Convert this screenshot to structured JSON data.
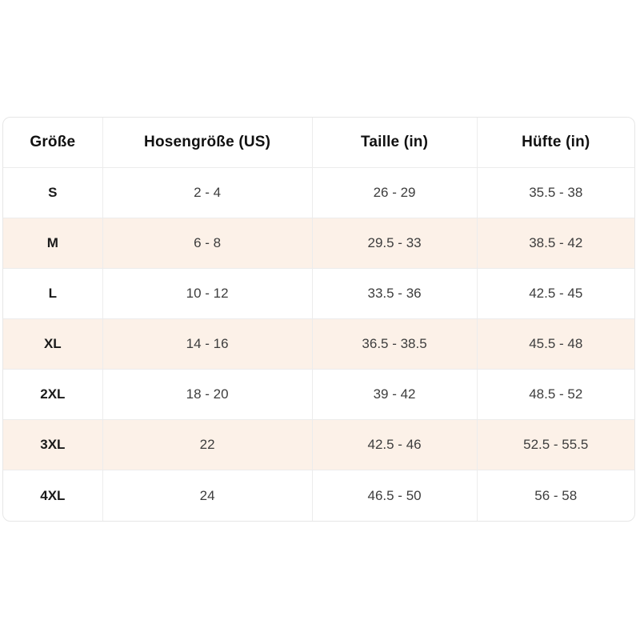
{
  "colors": {
    "stripe_background": "#fcf1e8",
    "grid_line": "#ececec",
    "outer_border": "#e7e7e7",
    "header_text": "#111111",
    "cell_text": "#3d3d3d",
    "page_background": "#ffffff"
  },
  "table": {
    "headers": [
      "Größe",
      "Hosengröße (US)",
      "Taille (in)",
      "Hüfte (in)"
    ],
    "rows": [
      {
        "size": "S",
        "us": "2 - 4",
        "waist": "26 - 29",
        "hip": "35.5 - 38"
      },
      {
        "size": "M",
        "us": "6 - 8",
        "waist": "29.5 - 33",
        "hip": "38.5 - 42"
      },
      {
        "size": "L",
        "us": "10 - 12",
        "waist": "33.5 - 36",
        "hip": "42.5 - 45"
      },
      {
        "size": "XL",
        "us": "14 - 16",
        "waist": "36.5 - 38.5",
        "hip": "45.5 - 48"
      },
      {
        "size": "2XL",
        "us": "18 - 20",
        "waist": "39 - 42",
        "hip": "48.5 - 52"
      },
      {
        "size": "3XL",
        "us": "22",
        "waist": "42.5 - 46",
        "hip": "52.5 - 55.5"
      },
      {
        "size": "4XL",
        "us": "24",
        "waist": "46.5 - 50",
        "hip": "56 - 58"
      }
    ]
  },
  "chart_data": {
    "type": "table",
    "title": "",
    "columns": [
      "Größe",
      "Hosengröße (US)",
      "Taille (in)",
      "Hüfte (in)"
    ],
    "rows": [
      [
        "S",
        "2 - 4",
        "26 - 29",
        "35.5 - 38"
      ],
      [
        "M",
        "6 - 8",
        "29.5 - 33",
        "38.5 - 42"
      ],
      [
        "L",
        "10 - 12",
        "33.5 - 36",
        "42.5 - 45"
      ],
      [
        "XL",
        "14 - 16",
        "36.5 - 38.5",
        "45.5 - 48"
      ],
      [
        "2XL",
        "18 - 20",
        "39 - 42",
        "48.5 - 52"
      ],
      [
        "3XL",
        "22",
        "42.5 - 46",
        "52.5 - 55.5"
      ],
      [
        "4XL",
        "24",
        "46.5 - 50",
        "56 - 58"
      ]
    ],
    "layout_hints": {
      "striped_rows": [
        "M",
        "XL",
        "3XL"
      ],
      "grid": true,
      "rounded_outer_border": true
    }
  }
}
